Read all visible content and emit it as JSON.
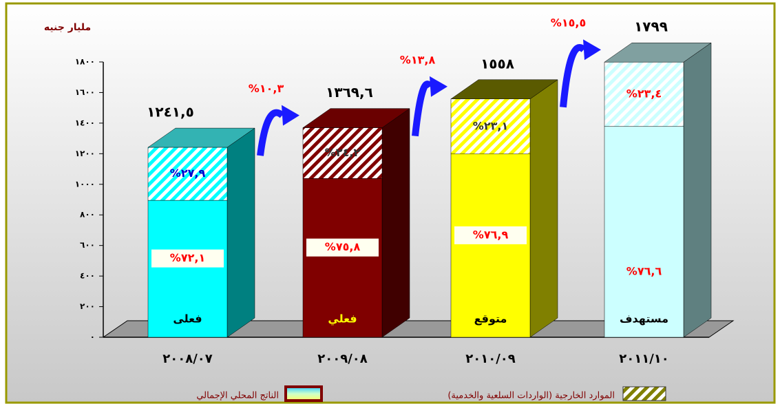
{
  "chart_data": {
    "type": "stacked-bar-3d",
    "ylabel": "مليار جنيه",
    "categories": [
      "٢٠٠٨/٠٧",
      "٢٠٠٩/٠٨",
      "٢٠١٠/٠٩",
      "٢٠١١/١٠"
    ],
    "status": [
      "فعلى",
      "فعلي",
      "متوقع",
      "مستهدف"
    ],
    "totals": {
      "values": [
        1241.5,
        1369.6,
        1558,
        1799
      ],
      "value_labels": [
        "١٢٤١,٥",
        "١٣٦٩,٦",
        "١٥٥٨",
        "١٧٩٩"
      ]
    },
    "growth": {
      "values": [
        10.3,
        13.8,
        15.5
      ],
      "value_labels": [
        "%١٠,٣",
        "%١٣,٨",
        "%١٥,٥"
      ]
    },
    "bar_colors": [
      "#00ffff",
      "#800000",
      "#ffff00",
      "#ccffff"
    ],
    "side_colors": [
      "#008080",
      "#400000",
      "#808000",
      "#5f8080"
    ],
    "top_colors": [
      "#33b3b3",
      "#6a0000",
      "#5a5a00",
      "#80a0a0"
    ],
    "series": [
      {
        "name": "الناتج المحلي الإجمالي",
        "color": "#800000",
        "values": [
          72.1,
          75.8,
          76.9,
          76.6
        ],
        "value_labels": [
          "%٧٢,١",
          "%٧٥,٨",
          "%٧٦,٩",
          "%٧٦,٦"
        ]
      },
      {
        "name": "الموارد الخارجية (الواردات السلعية والخدمية)",
        "color": "#808000",
        "values": [
          27.9,
          24.2,
          23.1,
          23.4
        ],
        "value_labels": [
          "%٢٧,٩",
          "%٢٤,٢",
          "%٢٣,١",
          "%٢٣,٤"
        ]
      }
    ],
    "ylim": [
      0,
      1800
    ],
    "yticks": [
      {
        "value": 0,
        "label": "٠"
      },
      {
        "value": 200,
        "label": "٢٠٠"
      },
      {
        "value": 400,
        "label": "٤٠٠"
      },
      {
        "value": 600,
        "label": "٦٠٠"
      },
      {
        "value": 800,
        "label": "٨٠٠"
      },
      {
        "value": 1000,
        "label": "١٠٠٠"
      },
      {
        "value": 1200,
        "label": "١٢٠٠"
      },
      {
        "value": 1400,
        "label": "١٤٠٠"
      },
      {
        "value": 1600,
        "label": "١٦٠٠"
      },
      {
        "value": 1800,
        "label": "١٨٠٠"
      }
    ]
  }
}
